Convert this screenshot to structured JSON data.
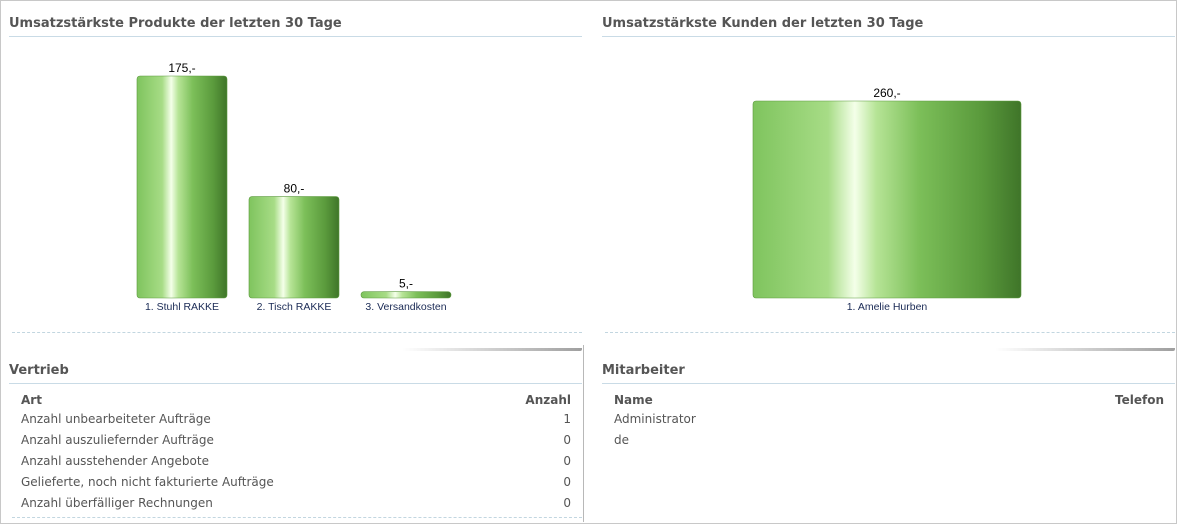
{
  "panels": {
    "products": {
      "title": "Umsatzstärkste Produkte der letzten 30 Tage"
    },
    "customers": {
      "title": "Umsatzstärkste Kunden der letzten 30 Tage"
    },
    "sales": {
      "title": "Vertrieb",
      "columns": [
        "Art",
        "Anzahl"
      ],
      "rows": [
        {
          "label": "Anzahl unbearbeiteter Aufträge",
          "value": "1"
        },
        {
          "label": "Anzahl auszuliefernder Aufträge",
          "value": "0"
        },
        {
          "label": "Anzahl ausstehender Angebote",
          "value": "0"
        },
        {
          "label": "Gelieferte, noch nicht fakturierte Aufträge",
          "value": "0"
        },
        {
          "label": "Anzahl überfälliger Rechnungen",
          "value": "0"
        }
      ]
    },
    "staff": {
      "title": "Mitarbeiter",
      "columns": [
        "Name",
        "Telefon"
      ],
      "rows": [
        {
          "name": "Administrator",
          "phone": ""
        },
        {
          "name": "de",
          "phone": ""
        }
      ]
    }
  },
  "chart_data": [
    {
      "type": "bar",
      "categories": [
        "1. Stuhl RAKKE",
        "2. Tisch RAKKE",
        "3. Versandkosten"
      ],
      "values": [
        175,
        80,
        5
      ],
      "value_labels": [
        "175,-",
        "80,-",
        "5,-"
      ],
      "color": "#6ab04c"
    },
    {
      "type": "bar",
      "categories": [
        "1. Amelie Hurben"
      ],
      "values": [
        260
      ],
      "value_labels": [
        "260,-"
      ],
      "color": "#6ab04c"
    }
  ]
}
